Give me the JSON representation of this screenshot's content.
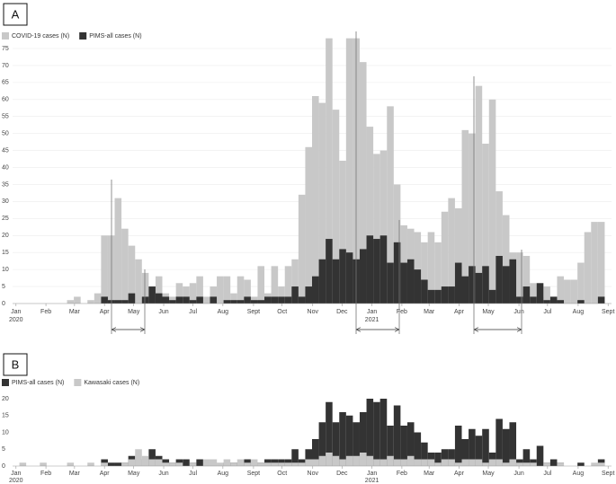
{
  "chart_data": [
    {
      "type": "bar",
      "panel": "A",
      "x": [
        0,
        1,
        2,
        3,
        4,
        5,
        6,
        7,
        8,
        9,
        10,
        11,
        12,
        13,
        14,
        15,
        16,
        17,
        18,
        19,
        20,
        21,
        22,
        23,
        24,
        25,
        26,
        27,
        28,
        29,
        30,
        31,
        32,
        33,
        34,
        35,
        36,
        37,
        38,
        39,
        40,
        41,
        42,
        43,
        44,
        45,
        46,
        47,
        48,
        49,
        50,
        51,
        52,
        53,
        54,
        55,
        56,
        57,
        58,
        59,
        60,
        61,
        62,
        63,
        64,
        65,
        66,
        67,
        68,
        69,
        70,
        71,
        72,
        73,
        74,
        75,
        76,
        77,
        78,
        79,
        80,
        81,
        82,
        83,
        84,
        85,
        86
      ],
      "series": [
        {
          "name": "COVID-19 cases (N)",
          "color": "#c8c8c8",
          "values": [
            0,
            0,
            0,
            0,
            0,
            0,
            0,
            0,
            1,
            2,
            0,
            1,
            3,
            20,
            20,
            31,
            22,
            17,
            13,
            9,
            5,
            8,
            3,
            2,
            6,
            5,
            6,
            8,
            2,
            5,
            8,
            8,
            3,
            8,
            7,
            2,
            11,
            3,
            11,
            5,
            11,
            13,
            32,
            46,
            61,
            59,
            78,
            57,
            42,
            78,
            78,
            71,
            52,
            44,
            45,
            58,
            35,
            23,
            22,
            21,
            18,
            21,
            18,
            27,
            31,
            28,
            51,
            50,
            64,
            47,
            60,
            33,
            26,
            15,
            15,
            14,
            6,
            2,
            5,
            2,
            8,
            7,
            7,
            12,
            21,
            24,
            24
          ]
        },
        {
          "name": "PIMS-all cases (N)",
          "color": "#333333",
          "values": [
            0,
            0,
            0,
            0,
            0,
            0,
            0,
            0,
            0,
            0,
            0,
            0,
            0,
            2,
            1,
            1,
            1,
            3,
            0,
            2,
            5,
            3,
            2,
            1,
            2,
            2,
            1,
            2,
            0,
            2,
            0,
            1,
            1,
            1,
            2,
            1,
            1,
            2,
            2,
            2,
            2,
            5,
            2,
            5,
            8,
            13,
            19,
            13,
            16,
            15,
            13,
            16,
            20,
            19,
            20,
            12,
            18,
            12,
            13,
            10,
            7,
            4,
            4,
            5,
            5,
            12,
            8,
            11,
            9,
            11,
            4,
            14,
            11,
            13,
            2,
            5,
            2,
            6,
            1,
            2,
            1,
            0,
            0,
            1,
            0,
            0,
            2
          ]
        }
      ],
      "xlim": [
        -0.5,
        87.5
      ],
      "xticks": [
        {
          "value": 0,
          "label": "Jan"
        },
        {
          "value": 4.4,
          "label": "Feb"
        },
        {
          "value": 8.6,
          "label": "Mar"
        },
        {
          "value": 13,
          "label": "Apr"
        },
        {
          "value": 17.3,
          "label": "May"
        },
        {
          "value": 21.7,
          "label": "Jun"
        },
        {
          "value": 26,
          "label": "Jul"
        },
        {
          "value": 30.4,
          "label": "Aug"
        },
        {
          "value": 34.9,
          "label": "Sept"
        },
        {
          "value": 39.1,
          "label": "Oct"
        },
        {
          "value": 43.6,
          "label": "Nov"
        },
        {
          "value": 47.9,
          "label": "Dec"
        },
        {
          "value": 52.3,
          "label": "Jan"
        },
        {
          "value": 56.7,
          "label": "Feb"
        },
        {
          "value": 60.7,
          "label": "Mar"
        },
        {
          "value": 65.1,
          "label": "Apr"
        },
        {
          "value": 69.4,
          "label": "May"
        },
        {
          "value": 73.9,
          "label": "Jun"
        },
        {
          "value": 78.1,
          "label": "Jul"
        },
        {
          "value": 82.6,
          "label": "Aug"
        },
        {
          "value": 87,
          "label": "Sept"
        }
      ],
      "year_labels": [
        {
          "value": 0,
          "label": "2020"
        },
        {
          "value": 52.3,
          "label": "2021"
        }
      ],
      "ylim": [
        0,
        77
      ],
      "yticks": [
        0,
        5,
        10,
        15,
        20,
        25,
        30,
        35,
        40,
        45,
        50,
        55,
        60,
        65,
        70,
        75
      ],
      "grid": true
    },
    {
      "type": "bar",
      "panel": "B",
      "x": [
        0,
        1,
        2,
        3,
        4,
        5,
        6,
        7,
        8,
        9,
        10,
        11,
        12,
        13,
        14,
        15,
        16,
        17,
        18,
        19,
        20,
        21,
        22,
        23,
        24,
        25,
        26,
        27,
        28,
        29,
        30,
        31,
        32,
        33,
        34,
        35,
        36,
        37,
        38,
        39,
        40,
        41,
        42,
        43,
        44,
        45,
        46,
        47,
        48,
        49,
        50,
        51,
        52,
        53,
        54,
        55,
        56,
        57,
        58,
        59,
        60,
        61,
        62,
        63,
        64,
        65,
        66,
        67,
        68,
        69,
        70,
        71,
        72,
        73,
        74,
        75,
        76,
        77,
        78,
        79,
        80,
        81,
        82,
        83,
        84,
        85,
        86
      ],
      "series": [
        {
          "name": "PIMS-all cases (N)",
          "color": "#333333",
          "values": [
            0,
            0,
            0,
            0,
            0,
            0,
            0,
            0,
            0,
            0,
            0,
            0,
            0,
            2,
            1,
            1,
            1,
            3,
            0,
            2,
            5,
            3,
            2,
            1,
            2,
            2,
            1,
            2,
            0,
            2,
            0,
            1,
            1,
            1,
            2,
            1,
            1,
            2,
            2,
            2,
            2,
            5,
            2,
            5,
            8,
            13,
            19,
            13,
            16,
            15,
            13,
            16,
            20,
            19,
            20,
            12,
            18,
            12,
            13,
            10,
            7,
            4,
            4,
            5,
            5,
            12,
            8,
            11,
            9,
            11,
            4,
            14,
            11,
            13,
            2,
            5,
            2,
            6,
            1,
            2,
            1,
            0,
            0,
            1,
            0,
            0,
            2
          ]
        },
        {
          "name": "Kawasaki cases (N)",
          "color": "#c8c8c8",
          "values": [
            0,
            1,
            0,
            0,
            1,
            0,
            0,
            0,
            1,
            0,
            0,
            1,
            0,
            1,
            0,
            0,
            1,
            2,
            5,
            3,
            2,
            2,
            1,
            1,
            1,
            0,
            1,
            0,
            2,
            2,
            1,
            2,
            1,
            2,
            1,
            2,
            1,
            1,
            1,
            1,
            1,
            1,
            1,
            2,
            2,
            3,
            4,
            3,
            2,
            3,
            3,
            4,
            3,
            2,
            2,
            3,
            2,
            2,
            3,
            2,
            2,
            2,
            1,
            2,
            2,
            1,
            2,
            2,
            2,
            1,
            2,
            2,
            1,
            2,
            1,
            1,
            1,
            0,
            1,
            0,
            1,
            0,
            0,
            0,
            0,
            1,
            1
          ]
        }
      ],
      "xlim": [
        -0.5,
        87.5
      ],
      "xticks": [
        {
          "value": 0,
          "label": "Jan"
        },
        {
          "value": 4.4,
          "label": "Feb"
        },
        {
          "value": 8.6,
          "label": "Mar"
        },
        {
          "value": 13,
          "label": "Apr"
        },
        {
          "value": 17.3,
          "label": "May"
        },
        {
          "value": 21.7,
          "label": "Jun"
        },
        {
          "value": 26,
          "label": "Jul"
        },
        {
          "value": 30.4,
          "label": "Aug"
        },
        {
          "value": 34.9,
          "label": "Sept"
        },
        {
          "value": 39.1,
          "label": "Oct"
        },
        {
          "value": 43.6,
          "label": "Nov"
        },
        {
          "value": 47.9,
          "label": "Dec"
        },
        {
          "value": 52.3,
          "label": "Jan"
        },
        {
          "value": 56.7,
          "label": "Feb"
        },
        {
          "value": 60.7,
          "label": "Mar"
        },
        {
          "value": 65.1,
          "label": "Apr"
        },
        {
          "value": 69.4,
          "label": "May"
        },
        {
          "value": 73.9,
          "label": "Jun"
        },
        {
          "value": 78.1,
          "label": "Jul"
        },
        {
          "value": 82.6,
          "label": "Aug"
        },
        {
          "value": 87,
          "label": "Sept"
        }
      ],
      "year_labels": [
        {
          "value": 0,
          "label": "2020"
        },
        {
          "value": 52.3,
          "label": "2021"
        }
      ],
      "ylim": [
        0,
        21
      ],
      "yticks": [
        0,
        5,
        10,
        15,
        20
      ],
      "grid": false
    }
  ]
}
